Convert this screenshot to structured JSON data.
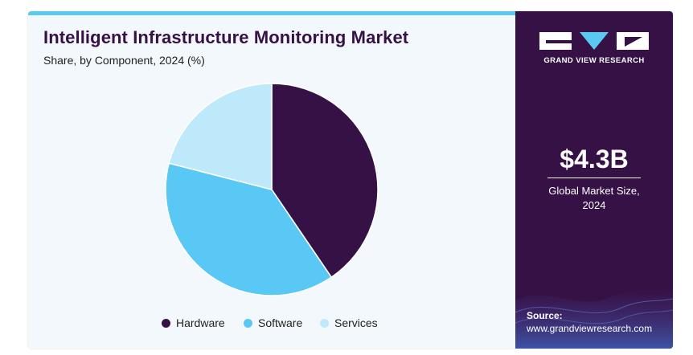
{
  "header": {
    "title": "Intelligent Infrastructure Monitoring Market",
    "subtitle": "Share, by Component, 2024 (%)"
  },
  "chart_data": {
    "type": "pie",
    "title": "Intelligent Infrastructure Monitoring Market",
    "subtitle": "Share, by Component, 2024 (%)",
    "labels": [
      "Hardware",
      "Software",
      "Services"
    ],
    "values": [
      40.5,
      38.5,
      21.0
    ],
    "colors": [
      "#351145",
      "#5ac8f5",
      "#bde9fa"
    ],
    "legend_position": "bottom"
  },
  "sidebar": {
    "brand": "GRAND VIEW RESEARCH",
    "market_size_value": "$4.3B",
    "market_size_caption_line1": "Global Market Size,",
    "market_size_caption_line2": "2024",
    "source_label": "Source:",
    "source_url": "www.grandviewresearch.com"
  },
  "colors": {
    "sidebar_bg": "#351145",
    "accent": "#5ac8f0",
    "panel_bg": "#f2f8fb"
  }
}
